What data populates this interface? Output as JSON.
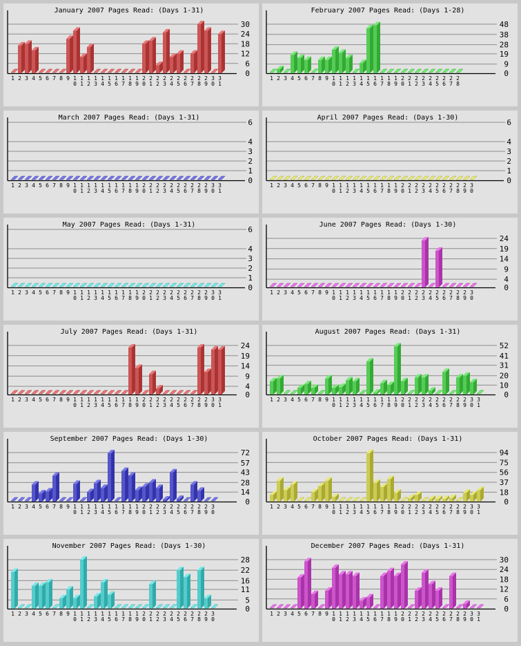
{
  "chart_data": [
    {
      "type": "bar",
      "title": "January 2007 Pages Read: (Days 1-31)",
      "ylim": [
        0,
        30
      ],
      "yticks": [
        0,
        6,
        12,
        18,
        24,
        30
      ],
      "colors": {
        "front": "#cc5555",
        "side": "#aa3333",
        "top": "#e87878"
      },
      "categories": [
        "1",
        "2",
        "3",
        "4",
        "5",
        "6",
        "7",
        "8",
        "9",
        "10",
        "11",
        "12",
        "13",
        "14",
        "15",
        "16",
        "17",
        "18",
        "19",
        "20",
        "21",
        "22",
        "23",
        "24",
        "25",
        "26",
        "27",
        "28",
        "29",
        "30",
        "31"
      ],
      "values": [
        0,
        17,
        18,
        14,
        0,
        0,
        0,
        0,
        21,
        26,
        10,
        16,
        0,
        0,
        0,
        0,
        0,
        0,
        0,
        18,
        20,
        5,
        25,
        10,
        12,
        0,
        12,
        30,
        26,
        0,
        24
      ]
    },
    {
      "type": "bar",
      "title": "February 2007 Pages Read: (Days 1-28)",
      "ylim": [
        0,
        48
      ],
      "yticks": [
        0,
        9,
        19,
        28,
        38,
        48
      ],
      "colors": {
        "front": "#55cc55",
        "side": "#33aa33",
        "top": "#78e878"
      },
      "categories": [
        "1",
        "2",
        "3",
        "4",
        "5",
        "6",
        "7",
        "8",
        "9",
        "10",
        "11",
        "12",
        "13",
        "14",
        "15",
        "16",
        "17",
        "18",
        "19",
        "20",
        "21",
        "22",
        "23",
        "24",
        "25",
        "26",
        "27",
        "28"
      ],
      "values": [
        0,
        4,
        0,
        18,
        15,
        13,
        0,
        13,
        13,
        23,
        20,
        15,
        0,
        10,
        44,
        47,
        0,
        0,
        0,
        0,
        0,
        0,
        0,
        0,
        0,
        0,
        0,
        0
      ]
    },
    {
      "type": "bar",
      "title": "March 2007 Pages Read: (Days 1-31)",
      "ylim": [
        0,
        6
      ],
      "yticks": [
        0,
        1,
        2,
        3,
        4,
        6
      ],
      "colors": {
        "front": "#5555cc",
        "side": "#3333aa",
        "top": "#7878e8"
      },
      "categories": [
        "1",
        "2",
        "3",
        "4",
        "5",
        "6",
        "7",
        "8",
        "9",
        "10",
        "11",
        "12",
        "13",
        "14",
        "15",
        "16",
        "17",
        "18",
        "19",
        "20",
        "21",
        "22",
        "23",
        "24",
        "25",
        "26",
        "27",
        "28",
        "29",
        "30",
        "31"
      ],
      "values": [
        0,
        0,
        0,
        0,
        0,
        0,
        0,
        0,
        0,
        0,
        0,
        0,
        0,
        0,
        0,
        0,
        0,
        0,
        0,
        0,
        0,
        0,
        0,
        0,
        0,
        0,
        0,
        0,
        0,
        0,
        0
      ]
    },
    {
      "type": "bar",
      "title": "April 2007 Pages Read: (Days 1-30)",
      "ylim": [
        0,
        6
      ],
      "yticks": [
        0,
        1,
        2,
        3,
        4,
        6
      ],
      "colors": {
        "front": "#cccc55",
        "side": "#aaaa33",
        "top": "#e8e878"
      },
      "categories": [
        "1",
        "2",
        "3",
        "4",
        "5",
        "6",
        "7",
        "8",
        "9",
        "10",
        "11",
        "12",
        "13",
        "14",
        "15",
        "16",
        "17",
        "18",
        "19",
        "20",
        "21",
        "22",
        "23",
        "24",
        "25",
        "26",
        "27",
        "28",
        "29",
        "30"
      ],
      "values": [
        0,
        0,
        0,
        0,
        0,
        0,
        0,
        0,
        0,
        0,
        0,
        0,
        0,
        0,
        0,
        0,
        0,
        0,
        0,
        0,
        0,
        0,
        0,
        0,
        0,
        0,
        0,
        0,
        0,
        0
      ]
    },
    {
      "type": "bar",
      "title": "May 2007 Pages Read: (Days 1-31)",
      "ylim": [
        0,
        6
      ],
      "yticks": [
        0,
        1,
        2,
        3,
        4,
        6
      ],
      "colors": {
        "front": "#55cccc",
        "side": "#33aaaa",
        "top": "#78e8e8"
      },
      "categories": [
        "1",
        "2",
        "3",
        "4",
        "5",
        "6",
        "7",
        "8",
        "9",
        "10",
        "11",
        "12",
        "13",
        "14",
        "15",
        "16",
        "17",
        "18",
        "19",
        "20",
        "21",
        "22",
        "23",
        "24",
        "25",
        "26",
        "27",
        "28",
        "29",
        "30",
        "31"
      ],
      "values": [
        0,
        0,
        0,
        0,
        0,
        0,
        0,
        0,
        0,
        0,
        0,
        0,
        0,
        0,
        0,
        0,
        0,
        0,
        0,
        0,
        0,
        0,
        0,
        0,
        0,
        0,
        0,
        0,
        0,
        0,
        0
      ]
    },
    {
      "type": "bar",
      "title": "June 2007 Pages Read: (Days 1-30)",
      "ylim": [
        0,
        24
      ],
      "yticks": [
        0,
        4,
        9,
        14,
        19,
        24
      ],
      "colors": {
        "front": "#cc55cc",
        "side": "#aa33aa",
        "top": "#e878e8"
      },
      "categories": [
        "1",
        "2",
        "3",
        "4",
        "5",
        "6",
        "7",
        "8",
        "9",
        "10",
        "11",
        "12",
        "13",
        "14",
        "15",
        "16",
        "17",
        "18",
        "19",
        "20",
        "21",
        "22",
        "23",
        "24",
        "25",
        "26",
        "27",
        "28",
        "29",
        "30"
      ],
      "values": [
        0,
        0,
        0,
        0,
        0,
        0,
        0,
        0,
        0,
        0,
        0,
        0,
        0,
        0,
        0,
        0,
        0,
        0,
        0,
        0,
        0,
        0,
        23,
        0,
        18,
        0,
        0,
        0,
        0,
        0
      ]
    },
    {
      "type": "bar",
      "title": "July 2007 Pages Read: (Days 1-31)",
      "ylim": [
        0,
        24
      ],
      "yticks": [
        0,
        4,
        9,
        14,
        19,
        24
      ],
      "colors": {
        "front": "#cc5555",
        "side": "#aa3333",
        "top": "#e87878"
      },
      "categories": [
        "1",
        "2",
        "3",
        "4",
        "5",
        "6",
        "7",
        "8",
        "9",
        "10",
        "11",
        "12",
        "13",
        "14",
        "15",
        "16",
        "17",
        "18",
        "19",
        "20",
        "21",
        "22",
        "23",
        "24",
        "25",
        "26",
        "27",
        "28",
        "29",
        "30",
        "31"
      ],
      "values": [
        0,
        0,
        0,
        0,
        0,
        0,
        0,
        0,
        0,
        0,
        0,
        0,
        0,
        0,
        0,
        0,
        0,
        23,
        13,
        0,
        10,
        3,
        0,
        0,
        0,
        0,
        0,
        23,
        11,
        22,
        22
      ]
    },
    {
      "type": "bar",
      "title": "August 2007 Pages Read: (Days 1-31)",
      "ylim": [
        0,
        52
      ],
      "yticks": [
        0,
        10,
        20,
        31,
        41,
        52
      ],
      "colors": {
        "front": "#55cc55",
        "side": "#33aa33",
        "top": "#78e878"
      },
      "categories": [
        "1",
        "2",
        "3",
        "4",
        "5",
        "6",
        "7",
        "8",
        "9",
        "10",
        "11",
        "12",
        "13",
        "14",
        "15",
        "16",
        "17",
        "18",
        "19",
        "20",
        "21",
        "22",
        "23",
        "24",
        "25",
        "26",
        "27",
        "28",
        "29",
        "30",
        "31"
      ],
      "values": [
        14,
        17,
        0,
        0,
        7,
        11,
        7,
        0,
        17,
        7,
        8,
        15,
        14,
        0,
        35,
        2,
        12,
        10,
        51,
        14,
        0,
        18,
        18,
        4,
        0,
        24,
        0,
        18,
        20,
        13,
        0
      ]
    },
    {
      "type": "bar",
      "title": "September 2007 Pages Read: (Days 1-30)",
      "ylim": [
        0,
        72
      ],
      "yticks": [
        0,
        14,
        28,
        43,
        57,
        72
      ],
      "colors": {
        "front": "#5555cc",
        "side": "#3333aa",
        "top": "#7878e8"
      },
      "categories": [
        "1",
        "2",
        "3",
        "4",
        "5",
        "6",
        "7",
        "8",
        "9",
        "10",
        "11",
        "12",
        "13",
        "14",
        "15",
        "16",
        "17",
        "18",
        "19",
        "20",
        "21",
        "22",
        "23",
        "24",
        "25",
        "26",
        "27",
        "28",
        "29",
        "30"
      ],
      "values": [
        0,
        0,
        0,
        25,
        12,
        15,
        38,
        0,
        0,
        26,
        0,
        14,
        27,
        20,
        71,
        0,
        45,
        38,
        17,
        22,
        28,
        20,
        3,
        43,
        4,
        0,
        25,
        16,
        0,
        0
      ]
    },
    {
      "type": "bar",
      "title": "October 2007 Pages Read: (Days 1-31)",
      "ylim": [
        0,
        94
      ],
      "yticks": [
        0,
        18,
        37,
        56,
        75,
        94
      ],
      "colors": {
        "front": "#cccc55",
        "side": "#aaaa33",
        "top": "#e8e878"
      },
      "categories": [
        "1",
        "2",
        "3",
        "4",
        "5",
        "6",
        "7",
        "8",
        "9",
        "10",
        "11",
        "12",
        "13",
        "14",
        "15",
        "16",
        "17",
        "18",
        "19",
        "20",
        "21",
        "22",
        "23",
        "24",
        "25",
        "26",
        "27",
        "28",
        "29",
        "30",
        "31"
      ],
      "values": [
        13,
        40,
        22,
        33,
        0,
        0,
        18,
        30,
        40,
        9,
        0,
        0,
        0,
        0,
        93,
        36,
        28,
        43,
        17,
        0,
        7,
        13,
        0,
        5,
        5,
        5,
        7,
        0,
        17,
        13,
        22
      ]
    },
    {
      "type": "bar",
      "title": "November 2007 Pages Read: (Days 1-30)",
      "ylim": [
        0,
        28
      ],
      "yticks": [
        0,
        5,
        11,
        16,
        22,
        28
      ],
      "colors": {
        "front": "#55cccc",
        "side": "#33aaaa",
        "top": "#78e8e8"
      },
      "categories": [
        "1",
        "2",
        "3",
        "4",
        "5",
        "6",
        "7",
        "8",
        "9",
        "10",
        "11",
        "12",
        "13",
        "14",
        "15",
        "16",
        "17",
        "18",
        "19",
        "20",
        "21",
        "22",
        "23",
        "24",
        "25",
        "26",
        "27",
        "28",
        "29",
        "30"
      ],
      "values": [
        21,
        0,
        0,
        13,
        13,
        15,
        0,
        6,
        11,
        6,
        28,
        0,
        7,
        15,
        8,
        0,
        0,
        0,
        0,
        0,
        14,
        0,
        0,
        0,
        22,
        18,
        0,
        22,
        6,
        0
      ]
    },
    {
      "type": "bar",
      "title": "December 2007 Pages Read: (Days 1-31)",
      "ylim": [
        0,
        30
      ],
      "yticks": [
        0,
        6,
        12,
        18,
        24,
        30
      ],
      "colors": {
        "front": "#cc55cc",
        "side": "#aa33aa",
        "top": "#e878e8"
      },
      "categories": [
        "1",
        "2",
        "3",
        "4",
        "5",
        "6",
        "7",
        "8",
        "9",
        "10",
        "11",
        "12",
        "13",
        "14",
        "15",
        "16",
        "17",
        "18",
        "19",
        "20",
        "21",
        "22",
        "23",
        "24",
        "25",
        "26",
        "27",
        "28",
        "29",
        "30",
        "31"
      ],
      "values": [
        0,
        0,
        0,
        0,
        19,
        29,
        9,
        0,
        11,
        25,
        21,
        21,
        20,
        5,
        7,
        0,
        20,
        23,
        20,
        27,
        0,
        11,
        22,
        15,
        11,
        0,
        20,
        0,
        3,
        0,
        0
      ]
    }
  ]
}
